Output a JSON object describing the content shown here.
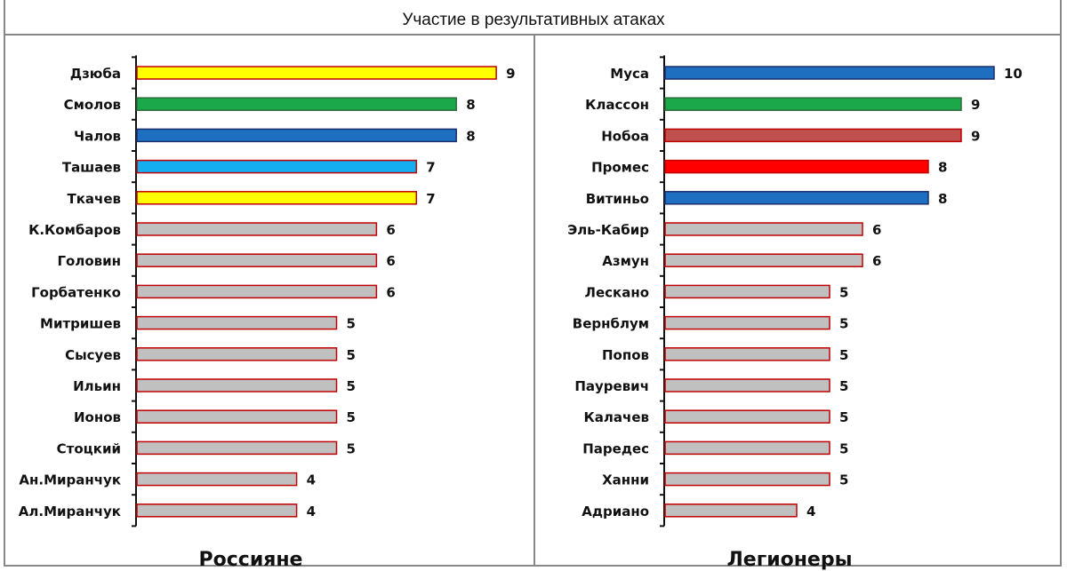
{
  "chart_data": [
    {
      "type": "bar",
      "orientation": "horizontal",
      "subtitle": "Участие в результативных атаках",
      "panel_title": "Россияне",
      "categories": [
        "Дзюба",
        "Смолов",
        "Чалов",
        "Ташаев",
        "Ткачев",
        "К.Комбаров",
        "Головин",
        "Горбатенко",
        "Митришев",
        "Сысуев",
        "Ильин",
        "Ионов",
        "Стоцкий",
        "Ан.Миранчук",
        "Ал.Миранчук"
      ],
      "values": [
        9,
        8,
        8,
        7,
        7,
        6,
        6,
        6,
        5,
        5,
        5,
        5,
        5,
        4,
        4
      ],
      "colors": [
        "#ffff00",
        "#1aa84a",
        "#1f6fc0",
        "#14aff0",
        "#ffff00",
        "#c0c0c0",
        "#c0c0c0",
        "#c0c0c0",
        "#c0c0c0",
        "#c0c0c0",
        "#c0c0c0",
        "#c0c0c0",
        "#c0c0c0",
        "#c0c0c0",
        "#c0c0c0"
      ],
      "data_labels": true,
      "grid": false
    },
    {
      "type": "bar",
      "orientation": "horizontal",
      "panel_title": "Легионеры",
      "categories": [
        "Муса",
        "Классон",
        "Нобоа",
        "Промес",
        "Витиньо",
        "Эль-Кабир",
        "Азмун",
        "Лескано",
        "Вернблум",
        "Попов",
        "Пауревич",
        "Калачев",
        "Паредес",
        "Ханни",
        "Адриано"
      ],
      "values": [
        10,
        9,
        9,
        8,
        8,
        6,
        6,
        5,
        5,
        5,
        5,
        5,
        5,
        5,
        4
      ],
      "colors": [
        "#1f6fc0",
        "#1aa84a",
        "#c0504d",
        "#ff0000",
        "#1f6fc0",
        "#c0c0c0",
        "#c0c0c0",
        "#c0c0c0",
        "#c0c0c0",
        "#c0c0c0",
        "#c0c0c0",
        "#c0c0c0",
        "#c0c0c0",
        "#c0c0c0",
        "#c0c0c0"
      ],
      "data_labels": true,
      "grid": false
    }
  ]
}
